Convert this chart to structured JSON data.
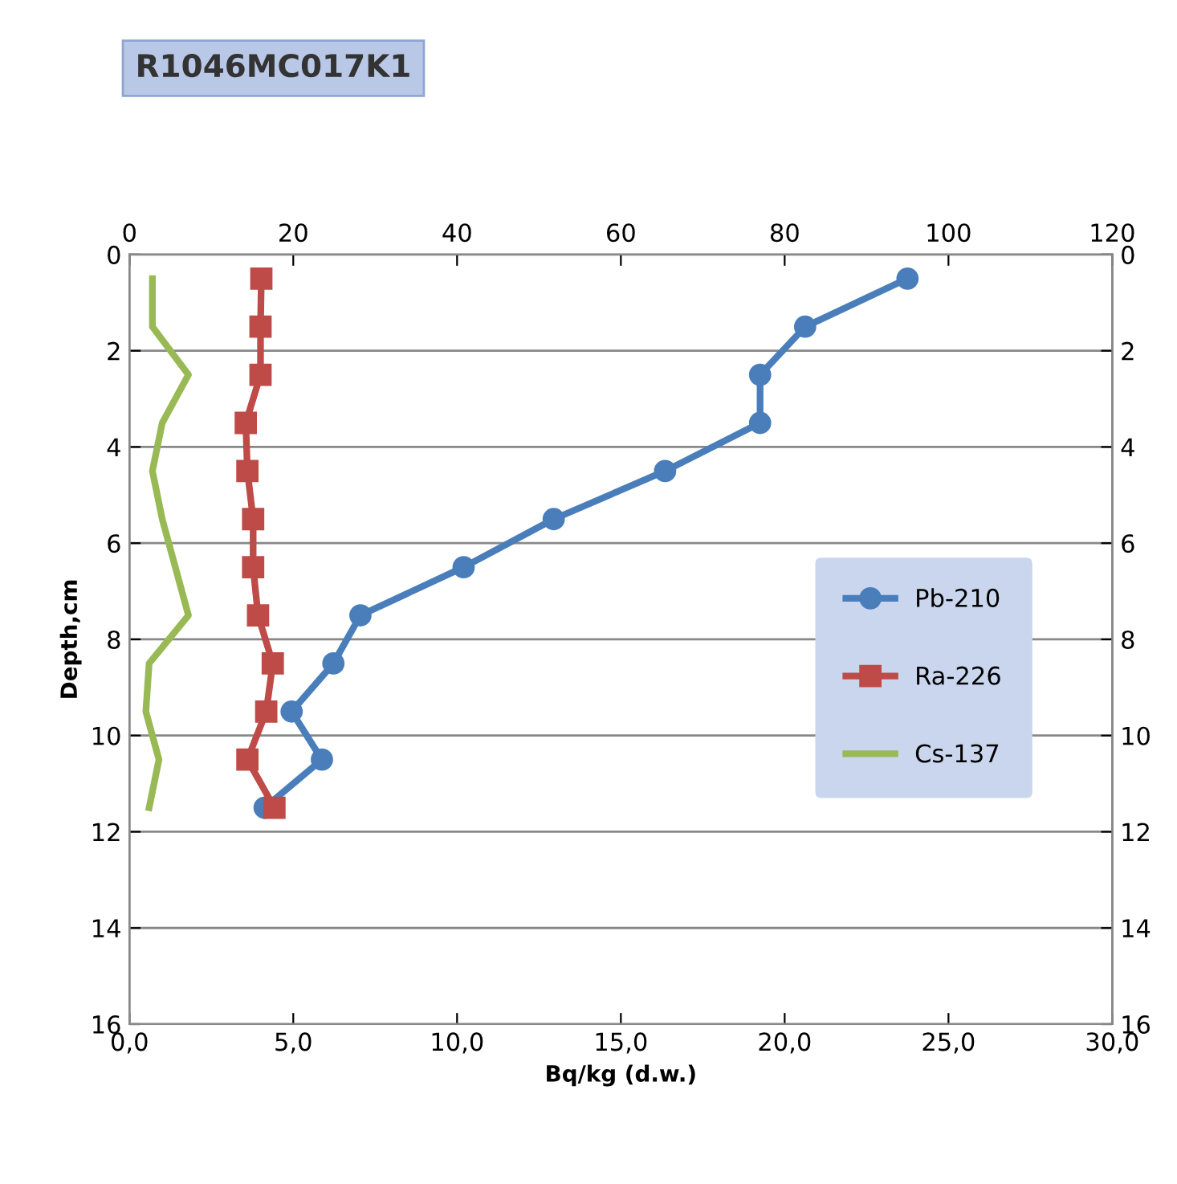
{
  "chart_data": {
    "type": "line",
    "title": "R1046MC017K1",
    "xlabel": "Bq/kg (d.w.)",
    "ylabel": "Depth,cm",
    "xlim": [
      0,
      30
    ],
    "xticks": [
      {
        "value": 0,
        "label": "0,0"
      },
      {
        "value": 5,
        "label": "5,0"
      },
      {
        "value": 10,
        "label": "10,0"
      },
      {
        "value": 15,
        "label": "15,0"
      },
      {
        "value": 20,
        "label": "20,0"
      },
      {
        "value": 25,
        "label": "25,0"
      },
      {
        "value": 30,
        "label": "30,0"
      }
    ],
    "x2lim": [
      0,
      120
    ],
    "x2ticks": [
      0,
      20,
      40,
      60,
      80,
      100,
      120
    ],
    "ylim": [
      16,
      0
    ],
    "yticks": [
      0,
      2,
      4,
      6,
      8,
      10,
      12,
      14,
      16
    ],
    "y2lim": [
      16,
      0
    ],
    "y2ticks": [
      0,
      2,
      4,
      6,
      8,
      10,
      12,
      14,
      16
    ],
    "grid": "y",
    "legend": "right",
    "series": [
      {
        "name": "Pb-210",
        "color": "#4a7ebb",
        "axis": "x2",
        "marker": "circle",
        "x": [
          95,
          82.5,
          77,
          77,
          65.4,
          51.8,
          40.8,
          28.2,
          24.9,
          19.8,
          23.5,
          16.5
        ],
        "values": [
          0.5,
          1.5,
          2.5,
          3.5,
          4.5,
          5.5,
          6.5,
          7.5,
          8.5,
          9.5,
          10.5,
          11.5
        ]
      },
      {
        "name": "Ra-226",
        "color": "#be4b48",
        "axis": "x2",
        "marker": "square",
        "x": [
          16.1,
          16,
          16,
          14.2,
          14.4,
          15.1,
          15.1,
          15.7,
          17.5,
          16.7,
          14.4,
          17.7
        ],
        "values": [
          0.5,
          1.5,
          2.5,
          3.5,
          4.5,
          5.5,
          6.5,
          7.5,
          8.5,
          9.5,
          10.5,
          11.5
        ]
      },
      {
        "name": "Cs-137",
        "color": "#98b954",
        "marker": "none",
        "x": [
          0.7,
          0.7,
          1.8,
          1.0,
          0.7,
          1.0,
          1.4,
          1.8,
          0.6,
          0.5,
          0.9,
          0.6
        ],
        "values": [
          0.5,
          1.5,
          2.5,
          3.5,
          4.5,
          5.5,
          6.5,
          7.5,
          8.5,
          9.5,
          10.5,
          11.5
        ]
      }
    ]
  }
}
